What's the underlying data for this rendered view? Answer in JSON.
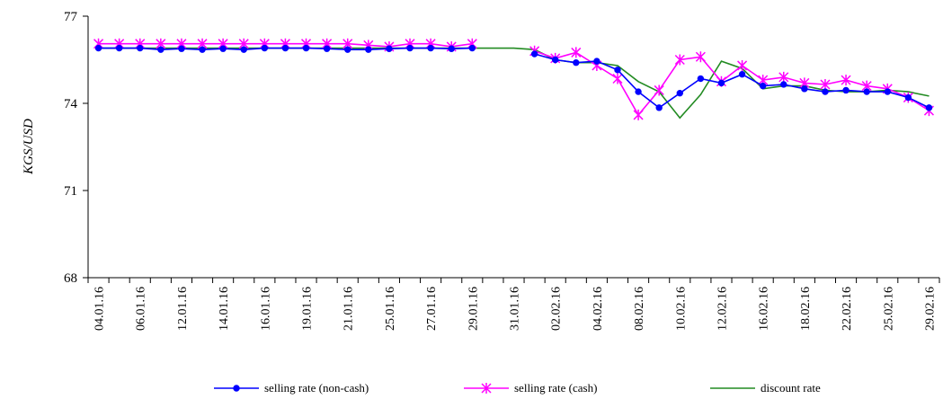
{
  "chart_data": {
    "type": "line",
    "title": "",
    "xlabel": "",
    "ylabel": "KGS/USD",
    "ylim": [
      68,
      77
    ],
    "yticks": [
      68,
      71,
      74,
      77
    ],
    "grid": false,
    "legend_position": "bottom",
    "x": [
      "04.01.16",
      "05.01.16",
      "06.01.16",
      "11.01.16",
      "12.01.16",
      "13.01.16",
      "14.01.16",
      "15.01.16",
      "16.01.16",
      "18.01.16",
      "19.01.16",
      "20.01.16",
      "21.01.16",
      "22.01.16",
      "25.01.16",
      "26.01.16",
      "27.01.16",
      "28.01.16",
      "29.01.16",
      "30.01.16",
      "31.01.16",
      "01.02.16",
      "02.02.16",
      "03.02.16",
      "04.02.16",
      "05.02.16",
      "08.02.16",
      "09.02.16",
      "10.02.16",
      "11.02.16",
      "12.02.16",
      "15.02.16",
      "16.02.16",
      "17.02.16",
      "18.02.16",
      "19.02.16",
      "22.02.16",
      "24.02.16",
      "25.02.16",
      "26.02.16",
      "29.02.16"
    ],
    "x_tick_labels": [
      "04.01.16",
      "06.01.16",
      "12.01.16",
      "14.01.16",
      "16.01.16",
      "19.01.16",
      "21.01.16",
      "25.01.16",
      "27.01.16",
      "29.01.16",
      "31.01.16",
      "02.02.16",
      "04.02.16",
      "08.02.16",
      "10.02.16",
      "12.02.16",
      "16.02.16",
      "18.02.16",
      "22.02.16",
      "25.02.16",
      "29.02.16"
    ],
    "series": [
      {
        "name": "selling rate (non-cash)",
        "color": "#0000ff",
        "marker": "circle",
        "values": [
          75.9,
          75.9,
          75.9,
          75.85,
          75.88,
          75.85,
          75.88,
          75.85,
          75.9,
          75.9,
          75.9,
          75.88,
          75.85,
          75.85,
          75.88,
          75.9,
          75.9,
          75.88,
          75.9,
          null,
          null,
          75.7,
          75.5,
          75.4,
          75.45,
          75.15,
          74.4,
          73.85,
          74.35,
          74.85,
          74.7,
          75.0,
          74.6,
          74.65,
          74.5,
          74.4,
          74.45,
          74.4,
          74.4,
          74.2,
          73.85
        ]
      },
      {
        "name": "selling rate (cash)",
        "color": "#ff00ff",
        "marker": "star",
        "values": [
          76.05,
          76.05,
          76.05,
          76.05,
          76.05,
          76.05,
          76.05,
          76.05,
          76.05,
          76.05,
          76.05,
          76.05,
          76.05,
          76.0,
          75.95,
          76.05,
          76.05,
          75.95,
          76.05,
          null,
          null,
          75.8,
          75.55,
          75.75,
          75.3,
          74.85,
          73.6,
          74.45,
          75.5,
          75.6,
          74.75,
          75.3,
          74.8,
          74.9,
          74.7,
          74.65,
          74.8,
          74.6,
          74.5,
          74.2,
          73.75
        ]
      },
      {
        "name": "discount rate",
        "color": "#228b22",
        "marker": "none",
        "values": [
          75.9,
          75.9,
          75.9,
          75.9,
          75.9,
          75.9,
          75.9,
          75.9,
          75.9,
          75.9,
          75.9,
          75.9,
          75.9,
          75.9,
          75.9,
          75.9,
          75.9,
          75.9,
          75.9,
          75.9,
          75.9,
          75.85,
          75.5,
          75.4,
          75.4,
          75.3,
          74.75,
          74.4,
          73.5,
          74.3,
          75.45,
          75.2,
          74.5,
          74.6,
          74.6,
          74.45,
          74.4,
          74.4,
          74.45,
          74.4,
          74.25
        ]
      }
    ]
  }
}
